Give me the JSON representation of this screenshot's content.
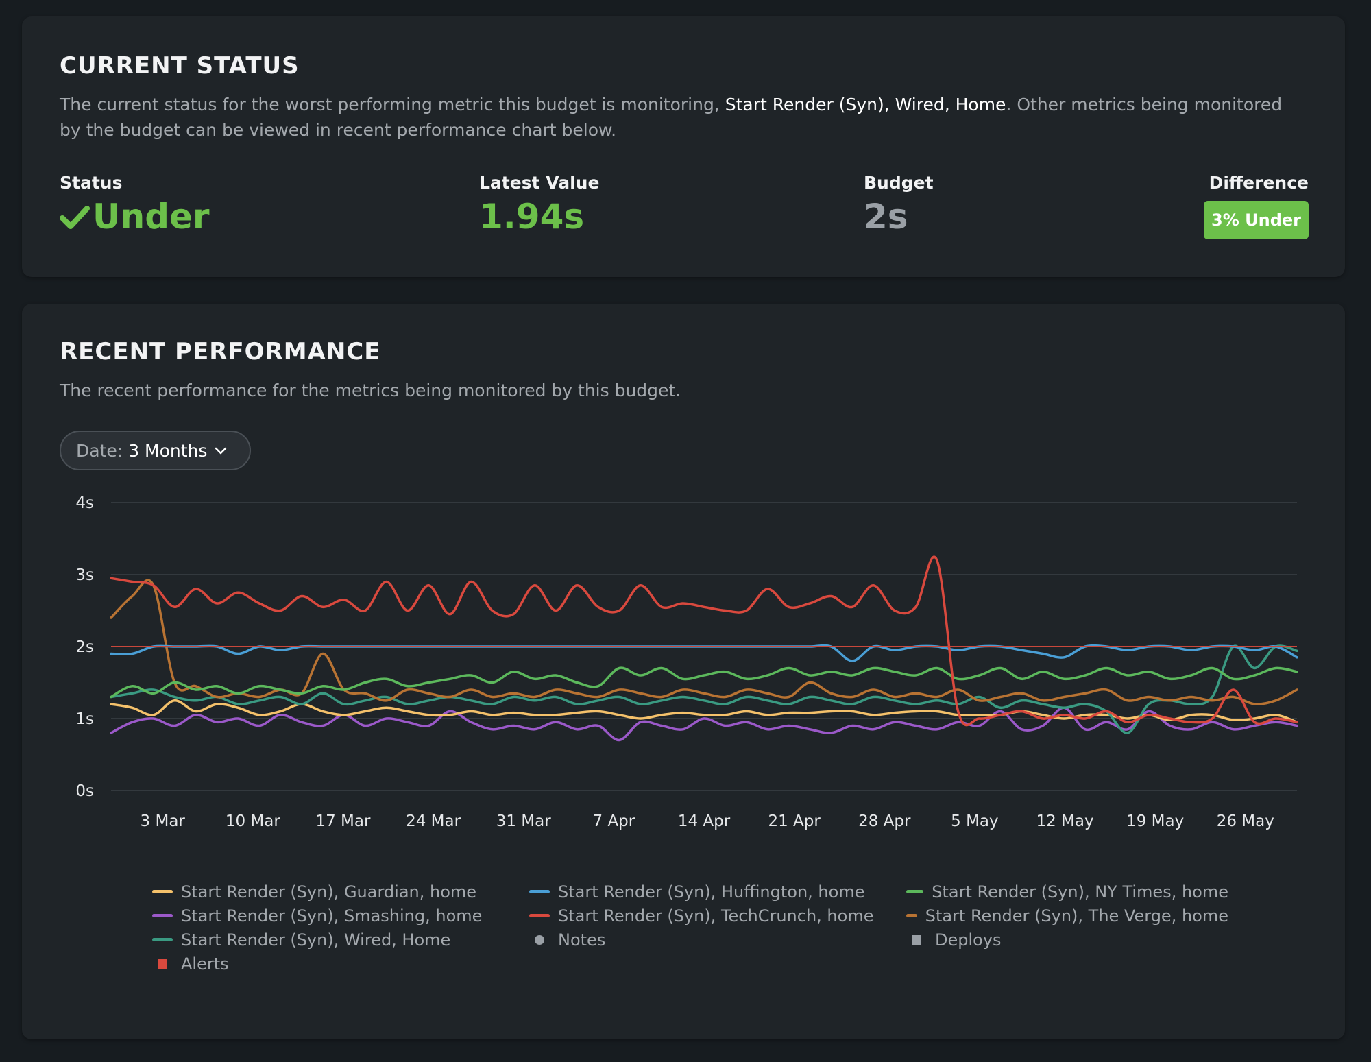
{
  "current_status": {
    "title": "CURRENT STATUS",
    "desc_prefix": "The current status for the worst performing metric this budget is monitoring, ",
    "desc_metric": "Start Render (Syn), Wired, Home",
    "desc_suffix": ". Other metrics being monitored by the budget can be viewed in recent performance chart below.",
    "status_label": "Status",
    "status_value": "Under",
    "latest_label": "Latest Value",
    "latest_value": "1.94s",
    "budget_label": "Budget",
    "budget_value": "2s",
    "difference_label": "Difference",
    "difference_value": "3% Under"
  },
  "recent_performance": {
    "title": "RECENT PERFORMANCE",
    "description": "The recent performance for the metrics being monitored by this budget.",
    "date_label": "Date:",
    "date_value": "3 Months"
  },
  "colors": {
    "good": "#6cc04a",
    "budget_line": "#c9473b"
  },
  "legend": {
    "notes": "Notes",
    "deploys": "Deploys",
    "alerts": "Alerts"
  },
  "chart_data": {
    "type": "line",
    "yticks": [
      "4s",
      "3s",
      "2s",
      "1s",
      "0s"
    ],
    "ylim": [
      0,
      4
    ],
    "xticks": [
      "3 Mar",
      "10 Mar",
      "17 Mar",
      "24 Mar",
      "31 Mar",
      "7 Apr",
      "14 Apr",
      "21 Apr",
      "28 Apr",
      "5 May",
      "12 May",
      "19 May",
      "26 May"
    ],
    "x_range_days": [
      -4,
      88
    ],
    "budget": 2,
    "grid": true,
    "legend_position": "bottom",
    "series": [
      {
        "name": "Start Render (Syn), Guardian, home",
        "color": "#f4c16b",
        "values": [
          1.2,
          1.15,
          1.05,
          1.25,
          1.1,
          1.2,
          1.15,
          1.05,
          1.1,
          1.2,
          1.1,
          1.05,
          1.1,
          1.15,
          1.1,
          1.05,
          1.05,
          1.1,
          1.05,
          1.08,
          1.05,
          1.05,
          1.08,
          1.1,
          1.05,
          1.0,
          1.05,
          1.08,
          1.05,
          1.05,
          1.1,
          1.05,
          1.08,
          1.08,
          1.1,
          1.1,
          1.05,
          1.08,
          1.1,
          1.1,
          1.05,
          1.05,
          1.05,
          1.1,
          1.05,
          1.0,
          1.05,
          1.05,
          1.0,
          1.05,
          0.98,
          1.05,
          1.05,
          0.98,
          1.0,
          1.05,
          0.95
        ]
      },
      {
        "name": "Start Render (Syn), Huffington, home",
        "color": "#4a9fd6",
        "values": [
          1.9,
          1.9,
          2.0,
          2.0,
          2.0,
          2.0,
          1.9,
          2.0,
          1.95,
          2.0,
          2.0,
          2.0,
          2.0,
          2.0,
          2.0,
          2.0,
          2.0,
          2.0,
          2.0,
          2.0,
          2.0,
          2.0,
          2.0,
          2.0,
          2.0,
          2.0,
          2.0,
          2.0,
          2.0,
          2.0,
          2.0,
          2.0,
          2.0,
          2.0,
          2.0,
          1.8,
          2.0,
          1.95,
          2.0,
          2.0,
          1.95,
          2.0,
          2.0,
          1.95,
          1.9,
          1.85,
          2.0,
          2.0,
          1.95,
          2.0,
          2.0,
          1.95,
          2.0,
          2.0,
          1.95,
          2.0,
          1.85
        ]
      },
      {
        "name": "Start Render (Syn), NY Times, home",
        "color": "#5cb85c",
        "values": [
          1.3,
          1.45,
          1.35,
          1.5,
          1.4,
          1.45,
          1.35,
          1.45,
          1.4,
          1.35,
          1.45,
          1.4,
          1.5,
          1.55,
          1.45,
          1.5,
          1.55,
          1.6,
          1.5,
          1.65,
          1.55,
          1.6,
          1.5,
          1.45,
          1.7,
          1.6,
          1.7,
          1.55,
          1.6,
          1.65,
          1.55,
          1.6,
          1.7,
          1.6,
          1.65,
          1.6,
          1.7,
          1.65,
          1.6,
          1.7,
          1.55,
          1.6,
          1.7,
          1.55,
          1.65,
          1.55,
          1.6,
          1.7,
          1.6,
          1.65,
          1.55,
          1.6,
          1.7,
          1.55,
          1.6,
          1.7,
          1.65
        ]
      },
      {
        "name": "Start Render (Syn), Smashing, home",
        "color": "#9b59c9",
        "values": [
          0.8,
          0.95,
          1.0,
          0.9,
          1.05,
          0.95,
          1.0,
          0.9,
          1.05,
          0.95,
          0.9,
          1.05,
          0.9,
          1.0,
          0.95,
          0.9,
          1.1,
          0.95,
          0.85,
          0.9,
          0.85,
          0.95,
          0.85,
          0.9,
          0.7,
          0.95,
          0.9,
          0.85,
          1.0,
          0.9,
          0.95,
          0.85,
          0.9,
          0.85,
          0.8,
          0.9,
          0.85,
          0.95,
          0.9,
          0.85,
          0.95,
          0.9,
          1.1,
          0.85,
          0.9,
          1.15,
          0.85,
          0.95,
          0.85,
          1.1,
          0.9,
          0.85,
          0.95,
          0.85,
          0.9,
          0.95,
          0.9
        ]
      },
      {
        "name": "Start Render (Syn), TechCrunch, home",
        "color": "#d9493e",
        "values": [
          2.95,
          2.9,
          2.85,
          2.55,
          2.8,
          2.6,
          2.75,
          2.6,
          2.5,
          2.7,
          2.55,
          2.65,
          2.5,
          2.9,
          2.5,
          2.85,
          2.45,
          2.9,
          2.5,
          2.45,
          2.85,
          2.5,
          2.85,
          2.55,
          2.5,
          2.85,
          2.55,
          2.6,
          2.55,
          2.5,
          2.5,
          2.8,
          2.55,
          2.6,
          2.7,
          2.55,
          2.85,
          2.5,
          2.55,
          3.2,
          1.1,
          1.0,
          1.05,
          1.1,
          1.0,
          1.05,
          1.0,
          1.1,
          0.95,
          1.05,
          1.0,
          0.95,
          1.0,
          1.4,
          0.95,
          1.0,
          0.95
        ]
      },
      {
        "name": "Start Render (Syn), The Verge, home",
        "color": "#b87333",
        "values": [
          2.4,
          2.7,
          2.85,
          1.5,
          1.45,
          1.3,
          1.35,
          1.3,
          1.4,
          1.35,
          1.9,
          1.4,
          1.35,
          1.25,
          1.4,
          1.35,
          1.3,
          1.4,
          1.3,
          1.35,
          1.3,
          1.4,
          1.35,
          1.3,
          1.4,
          1.35,
          1.3,
          1.4,
          1.35,
          1.3,
          1.4,
          1.35,
          1.3,
          1.5,
          1.35,
          1.3,
          1.4,
          1.3,
          1.35,
          1.3,
          1.4,
          1.25,
          1.3,
          1.35,
          1.25,
          1.3,
          1.35,
          1.4,
          1.25,
          1.3,
          1.25,
          1.3,
          1.25,
          1.3,
          1.2,
          1.25,
          1.4
        ]
      },
      {
        "name": "Start Render (Syn), Wired, Home",
        "color": "#3a9a82",
        "values": [
          1.3,
          1.35,
          1.4,
          1.3,
          1.25,
          1.3,
          1.2,
          1.25,
          1.3,
          1.2,
          1.35,
          1.2,
          1.25,
          1.3,
          1.2,
          1.25,
          1.3,
          1.25,
          1.2,
          1.3,
          1.25,
          1.3,
          1.2,
          1.25,
          1.3,
          1.2,
          1.25,
          1.3,
          1.25,
          1.2,
          1.3,
          1.25,
          1.2,
          1.3,
          1.25,
          1.2,
          1.3,
          1.25,
          1.2,
          1.25,
          1.2,
          1.3,
          1.15,
          1.25,
          1.2,
          1.15,
          1.2,
          1.1,
          0.8,
          1.2,
          1.25,
          1.2,
          1.3,
          2.0,
          1.7,
          2.0,
          1.94
        ]
      }
    ]
  }
}
